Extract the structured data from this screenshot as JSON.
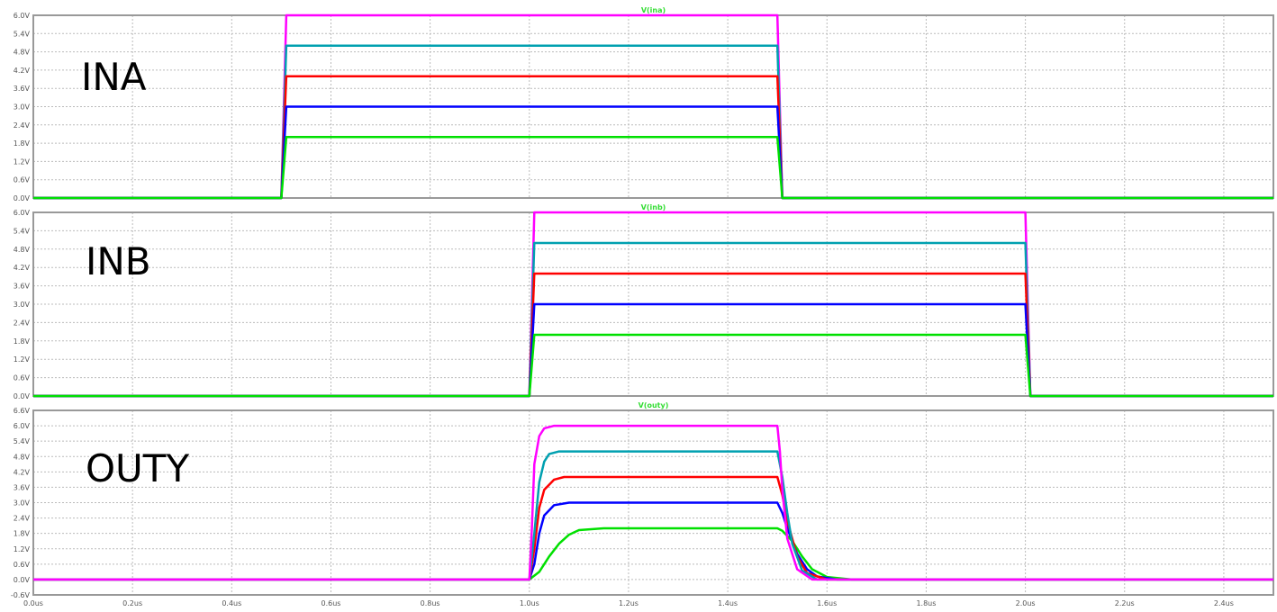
{
  "chart_data": [
    {
      "type": "line",
      "title": "V(ina)",
      "label": "INA",
      "y_ticks": [
        "0.0V",
        "0.6V",
        "1.2V",
        "1.8V",
        "2.4V",
        "3.0V",
        "3.6V",
        "4.2V",
        "4.8V",
        "5.4V",
        "6.0V"
      ],
      "ylim": [
        0,
        6
      ],
      "xlim": [
        0,
        2.5
      ],
      "grid": true,
      "series": [
        {
          "color": "#ff00ff",
          "x": [
            0,
            0.5,
            0.51,
            1.5,
            1.51,
            2.5
          ],
          "y": [
            0,
            0,
            6,
            6,
            0,
            0
          ]
        },
        {
          "color": "#00a0b0",
          "x": [
            0,
            0.5,
            0.51,
            1.5,
            1.51,
            2.5
          ],
          "y": [
            0,
            0,
            5,
            5,
            0,
            0
          ]
        },
        {
          "color": "#ff0000",
          "x": [
            0,
            0.5,
            0.51,
            1.5,
            1.51,
            2.5
          ],
          "y": [
            0,
            0,
            4,
            4,
            0,
            0
          ]
        },
        {
          "color": "#0000ff",
          "x": [
            0,
            0.5,
            0.51,
            1.5,
            1.51,
            2.5
          ],
          "y": [
            0,
            0,
            3,
            3,
            0,
            0
          ]
        },
        {
          "color": "#00e000",
          "x": [
            0,
            0.5,
            0.51,
            1.5,
            1.51,
            2.5
          ],
          "y": [
            0,
            0,
            2,
            2,
            0,
            0
          ]
        }
      ]
    },
    {
      "type": "line",
      "title": "V(inb)",
      "label": "INB",
      "y_ticks": [
        "0.0V",
        "0.6V",
        "1.2V",
        "1.8V",
        "2.4V",
        "3.0V",
        "3.6V",
        "4.2V",
        "4.8V",
        "5.4V",
        "6.0V"
      ],
      "ylim": [
        0,
        6
      ],
      "xlim": [
        0,
        2.5
      ],
      "grid": true,
      "series": [
        {
          "color": "#ff00ff",
          "x": [
            0,
            1.0,
            1.01,
            2.0,
            2.01,
            2.5
          ],
          "y": [
            0,
            0,
            6,
            6,
            0,
            0
          ]
        },
        {
          "color": "#00a0b0",
          "x": [
            0,
            1.0,
            1.01,
            2.0,
            2.01,
            2.5
          ],
          "y": [
            0,
            0,
            5,
            5,
            0,
            0
          ]
        },
        {
          "color": "#ff0000",
          "x": [
            0,
            1.0,
            1.01,
            2.0,
            2.01,
            2.5
          ],
          "y": [
            0,
            0,
            4,
            4,
            0,
            0
          ]
        },
        {
          "color": "#0000ff",
          "x": [
            0,
            1.0,
            1.01,
            2.0,
            2.01,
            2.5
          ],
          "y": [
            0,
            0,
            3,
            3,
            0,
            0
          ]
        },
        {
          "color": "#00e000",
          "x": [
            0,
            1.0,
            1.01,
            2.0,
            2.01,
            2.5
          ],
          "y": [
            0,
            0,
            2,
            2,
            0,
            0
          ]
        }
      ]
    },
    {
      "type": "line",
      "title": "V(outy)",
      "label": "OUTY",
      "y_ticks": [
        "-0.6V",
        "0.0V",
        "0.6V",
        "1.2V",
        "1.8V",
        "2.4V",
        "3.0V",
        "3.6V",
        "4.2V",
        "4.8V",
        "5.4V",
        "6.0V",
        "6.6V"
      ],
      "ylim": [
        -0.6,
        6.6
      ],
      "xlim": [
        0,
        2.5
      ],
      "x_ticks": [
        "0.0us",
        "0.2us",
        "0.4us",
        "0.6us",
        "0.8us",
        "1.0us",
        "1.2us",
        "1.4us",
        "1.6us",
        "1.8us",
        "2.0us",
        "2.2us",
        "2.4us"
      ],
      "grid": true,
      "series": [
        {
          "color": "#00e000",
          "x": [
            0,
            1.0,
            1.02,
            1.04,
            1.06,
            1.08,
            1.1,
            1.15,
            1.5,
            1.51,
            1.53,
            1.55,
            1.57,
            1.6,
            1.65,
            2.5
          ],
          "y": [
            0,
            0,
            0.3,
            0.9,
            1.4,
            1.75,
            1.93,
            2.0,
            2.0,
            1.9,
            1.5,
            0.9,
            0.4,
            0.1,
            0,
            0
          ]
        },
        {
          "color": "#0000ff",
          "x": [
            0,
            1.0,
            1.01,
            1.02,
            1.03,
            1.05,
            1.08,
            1.5,
            1.51,
            1.52,
            1.54,
            1.56,
            1.58,
            1.62,
            2.5
          ],
          "y": [
            0,
            0,
            0.6,
            1.8,
            2.5,
            2.9,
            3.0,
            3.0,
            2.6,
            2.0,
            1.0,
            0.4,
            0.12,
            0,
            0
          ]
        },
        {
          "color": "#ff0000",
          "x": [
            0,
            1.0,
            1.01,
            1.02,
            1.03,
            1.05,
            1.07,
            1.5,
            1.51,
            1.52,
            1.54,
            1.56,
            1.6,
            2.5
          ],
          "y": [
            0,
            0,
            1.2,
            2.8,
            3.5,
            3.9,
            4.0,
            4.0,
            3.3,
            2.3,
            0.9,
            0.25,
            0,
            0
          ]
        },
        {
          "color": "#00a0b0",
          "x": [
            0,
            1.0,
            1.01,
            1.02,
            1.03,
            1.04,
            1.06,
            1.5,
            1.51,
            1.52,
            1.53,
            1.55,
            1.58,
            2.5
          ],
          "y": [
            0,
            0,
            1.8,
            3.8,
            4.6,
            4.9,
            5.0,
            5.0,
            4.0,
            2.6,
            1.4,
            0.35,
            0,
            0
          ]
        },
        {
          "color": "#ff00ff",
          "x": [
            0,
            1.0,
            1.005,
            1.01,
            1.02,
            1.03,
            1.05,
            1.5,
            1.505,
            1.51,
            1.52,
            1.54,
            1.57,
            2.5
          ],
          "y": [
            0,
            0,
            2.0,
            4.5,
            5.6,
            5.9,
            6.0,
            6.0,
            5.0,
            3.5,
            1.6,
            0.4,
            0,
            0
          ]
        }
      ]
    }
  ]
}
